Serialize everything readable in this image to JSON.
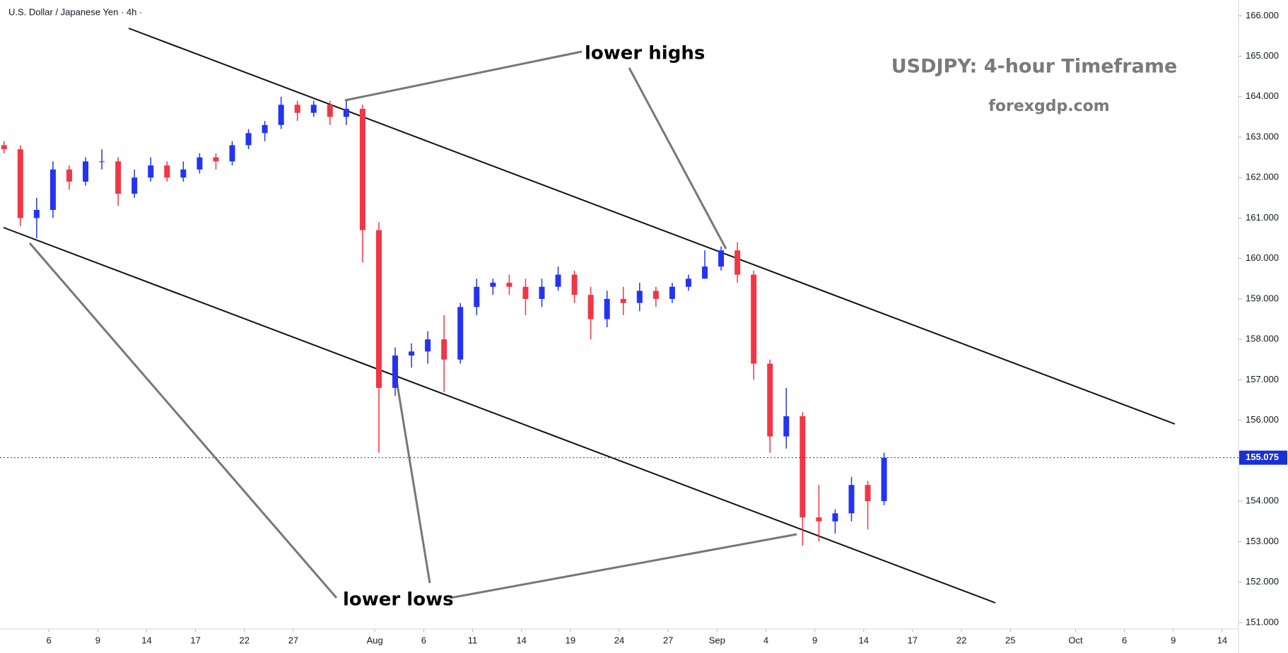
{
  "chart_data": {
    "type": "candlestick",
    "header": "U.S. Dollar / Japanese Yen · 4h ·",
    "title": "USDJPY: 4-hour Timeframe",
    "subtitle": "forexgdp.com",
    "annotations": [
      "lower highs",
      "lower lows"
    ],
    "x": [
      0.25,
      1.25,
      2.25,
      3.25,
      4.25,
      5.25,
      6.25,
      7.25,
      8.25,
      9.25,
      10.25,
      11.25,
      12.25,
      13.25,
      14.25,
      15.25,
      16.25,
      17.25,
      18.25,
      19.25,
      20.25,
      21.25,
      22.25,
      23.25,
      24.25,
      25.25,
      26.25,
      27.25,
      28.25,
      29.25,
      30.25,
      31.25,
      32.25,
      33.25,
      34.25,
      35.25,
      36.25,
      37.25,
      38.25,
      39.25,
      40.25,
      41.25,
      42.25,
      43.25,
      44.25,
      45.25,
      46.25,
      47.25,
      48.25,
      49.25,
      50.25,
      51.25,
      52.25,
      53.25,
      54.25
    ],
    "open": [
      162.8,
      162.7,
      161.0,
      161.2,
      162.2,
      161.9,
      162.4,
      162.4,
      161.6,
      162.0,
      162.3,
      162.0,
      162.2,
      162.5,
      162.4,
      162.8,
      163.1,
      163.3,
      163.8,
      163.6,
      163.8,
      163.5,
      163.7,
      160.7,
      156.8,
      157.6,
      157.7,
      158.0,
      157.5,
      158.8,
      159.3,
      159.4,
      159.3,
      159.0,
      159.3,
      159.6,
      159.1,
      158.5,
      159.0,
      158.9,
      159.2,
      159.0,
      159.3,
      159.5,
      159.8,
      160.2,
      159.6,
      157.4,
      155.6,
      156.1,
      153.6,
      153.5,
      153.7,
      154.4,
      154.0
    ],
    "high": [
      162.9,
      162.8,
      161.5,
      162.4,
      162.3,
      162.5,
      162.7,
      162.5,
      162.2,
      162.5,
      162.4,
      162.4,
      162.6,
      162.6,
      162.9,
      163.2,
      163.4,
      164.0,
      163.9,
      163.9,
      163.9,
      163.9,
      163.8,
      160.9,
      157.8,
      157.9,
      158.2,
      158.6,
      158.9,
      159.5,
      159.5,
      159.6,
      159.5,
      159.5,
      159.8,
      159.7,
      159.3,
      159.2,
      159.3,
      159.4,
      159.3,
      159.4,
      159.6,
      160.2,
      160.3,
      160.4,
      159.7,
      157.5,
      156.8,
      156.2,
      154.4,
      153.8,
      154.6,
      154.5,
      155.2
    ],
    "low": [
      162.6,
      160.8,
      160.5,
      161.0,
      161.7,
      161.8,
      162.2,
      161.3,
      161.5,
      161.9,
      161.9,
      161.9,
      162.1,
      162.2,
      162.3,
      162.7,
      162.9,
      163.2,
      163.4,
      163.5,
      163.3,
      163.3,
      159.9,
      155.2,
      156.6,
      157.3,
      157.4,
      156.7,
      157.4,
      158.6,
      159.1,
      159.1,
      158.6,
      158.8,
      159.2,
      158.9,
      158.0,
      158.3,
      158.6,
      158.7,
      158.8,
      158.9,
      159.2,
      159.5,
      159.7,
      159.4,
      157.0,
      155.2,
      155.3,
      152.9,
      153.0,
      153.2,
      153.5,
      153.3,
      153.9
    ],
    "close": [
      162.7,
      161.0,
      161.2,
      162.2,
      161.9,
      162.4,
      162.4,
      161.6,
      162.0,
      162.3,
      162.0,
      162.2,
      162.5,
      162.4,
      162.8,
      163.1,
      163.3,
      163.8,
      163.6,
      163.8,
      163.5,
      163.7,
      160.7,
      156.8,
      157.6,
      157.7,
      158.0,
      157.5,
      158.8,
      159.3,
      159.4,
      159.3,
      159.0,
      159.3,
      159.6,
      159.1,
      158.5,
      159.0,
      158.9,
      159.2,
      159.0,
      159.3,
      159.5,
      159.8,
      160.2,
      159.6,
      157.4,
      155.6,
      156.1,
      153.6,
      153.5,
      153.7,
      154.4,
      154.0,
      155.075
    ],
    "up_color": "#2433f0",
    "down_color": "#f23645",
    "last_price": 155.075,
    "last_price_color": "#1a2fd6",
    "xlim": [
      0,
      76
    ],
    "ylim": [
      150.84,
      166.39
    ],
    "xticks": [
      {
        "value": 3,
        "label": "6"
      },
      {
        "value": 6,
        "label": "9"
      },
      {
        "value": 9,
        "label": "14"
      },
      {
        "value": 12,
        "label": "17"
      },
      {
        "value": 15,
        "label": "22"
      },
      {
        "value": 18,
        "label": "27"
      },
      {
        "value": 23,
        "label": "Aug"
      },
      {
        "value": 26,
        "label": "6"
      },
      {
        "value": 29,
        "label": "11"
      },
      {
        "value": 32,
        "label": "14"
      },
      {
        "value": 35,
        "label": "19"
      },
      {
        "value": 38,
        "label": "24"
      },
      {
        "value": 41,
        "label": "27"
      },
      {
        "value": 44,
        "label": "Sep"
      },
      {
        "value": 47,
        "label": "4"
      },
      {
        "value": 50,
        "label": "9"
      },
      {
        "value": 53,
        "label": "14"
      },
      {
        "value": 56,
        "label": "17"
      },
      {
        "value": 59,
        "label": "22"
      },
      {
        "value": 62,
        "label": "25"
      },
      {
        "value": 66,
        "label": "Oct"
      },
      {
        "value": 69,
        "label": "6"
      },
      {
        "value": 72,
        "label": "9"
      },
      {
        "value": 75,
        "label": "14"
      }
    ],
    "yticks": [
      {
        "value": 151,
        "label": "151.000"
      },
      {
        "value": 152,
        "label": "152.000"
      },
      {
        "value": 153,
        "label": "153.000"
      },
      {
        "value": 154,
        "label": "154.000"
      },
      {
        "value": 155,
        "label": "155.000"
      },
      {
        "value": 156,
        "label": "156.000"
      },
      {
        "value": 157,
        "label": "157.000"
      },
      {
        "value": 158,
        "label": "158.000"
      },
      {
        "value": 159,
        "label": "159.000"
      },
      {
        "value": 160,
        "label": "160.000"
      },
      {
        "value": 161,
        "label": "161.000"
      },
      {
        "value": 162,
        "label": "162.000"
      },
      {
        "value": 163,
        "label": "163.000"
      },
      {
        "value": 164,
        "label": "164.000"
      },
      {
        "value": 165,
        "label": "165.000"
      },
      {
        "value": 166,
        "label": "166.000"
      }
    ]
  }
}
